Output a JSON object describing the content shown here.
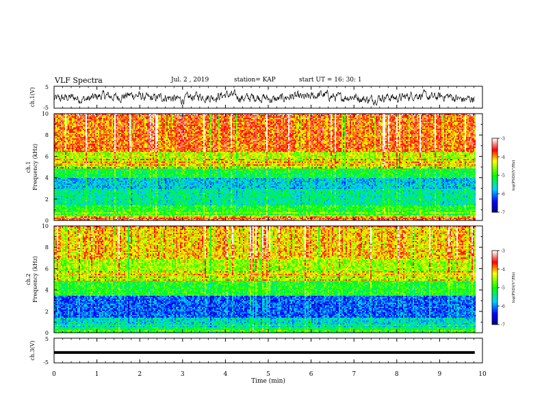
{
  "header": {
    "title": "VLF Spectra",
    "date": "Jul. 2 , 2019",
    "station": "station= KAP",
    "start": "start UT = 16: 30: 1"
  },
  "chart_data": [
    {
      "type": "line",
      "name": "ch1-waveform",
      "ylabel": "ch.1(V)",
      "ylim": [
        -5,
        5
      ],
      "xlim": [
        0,
        10
      ],
      "yticks": [
        "5",
        "-5"
      ],
      "description_values": "noisy waveform oscillating roughly between -3 V and +3 V over 0 to 9.8 min"
    },
    {
      "type": "heatmap",
      "name": "ch1-spectrogram",
      "ylabel": "ch.1\nFrequency (kHz)",
      "ylabel_line1": "ch.1",
      "ylabel_line2": "Frequency (kHz)",
      "ylim": [
        0,
        10
      ],
      "yticks": [
        "0",
        "2",
        "4",
        "6",
        "8",
        "10"
      ],
      "xlim": [
        0,
        9.8
      ],
      "colorbar": {
        "label": "log(PSD)(V²/Hz)",
        "ticks": [
          "-3",
          "-4",
          "-5",
          "-6",
          "-7"
        ],
        "range": [
          -7,
          -3
        ]
      },
      "bands": [
        {
          "f0": 0,
          "f1": 0.5,
          "level": -4.0
        },
        {
          "f0": 0.5,
          "f1": 1.5,
          "level": -5.0
        },
        {
          "f0": 1.5,
          "f1": 3.0,
          "level": -5.4
        },
        {
          "f0": 3.0,
          "f1": 4.0,
          "level": -5.7
        },
        {
          "f0": 4.0,
          "f1": 5.0,
          "level": -5.1
        },
        {
          "f0": 5.0,
          "f1": 6.5,
          "level": -4.4
        },
        {
          "f0": 6.5,
          "f1": 10,
          "level": -3.8
        }
      ]
    },
    {
      "type": "heatmap",
      "name": "ch2-spectrogram",
      "ylabel_line1": "ch.2",
      "ylabel_line2": "Frequency (kHz)",
      "ylim": [
        0,
        10
      ],
      "yticks": [
        "0",
        "2",
        "4",
        "6",
        "8",
        "10"
      ],
      "xlim": [
        0,
        9.8
      ],
      "colorbar": {
        "label": "log(PSD)(V²/Hz)",
        "ticks": [
          "-3",
          "-4",
          "-5",
          "-6",
          "-7"
        ],
        "range": [
          -7,
          -3
        ]
      },
      "bands": [
        {
          "f0": 0,
          "f1": 0.5,
          "level": -5.2
        },
        {
          "f0": 0.5,
          "f1": 1.5,
          "level": -5.6
        },
        {
          "f0": 1.5,
          "f1": 3.5,
          "level": -6.1
        },
        {
          "f0": 3.5,
          "f1": 5.0,
          "level": -5.0
        },
        {
          "f0": 5.0,
          "f1": 7.0,
          "level": -4.5
        },
        {
          "f0": 7.0,
          "f1": 10,
          "level": -4.1
        }
      ]
    },
    {
      "type": "line",
      "name": "ch3-waveform",
      "ylabel": "ch.3(V)",
      "ylim": [
        -5,
        5
      ],
      "xlim": [
        0,
        10
      ],
      "yticks": [
        "5",
        "-5"
      ],
      "constant_value": 0
    }
  ],
  "xaxis": {
    "label": "Time (min)",
    "ticks": [
      "0",
      "1",
      "2",
      "3",
      "4",
      "5",
      "6",
      "7",
      "8",
      "9",
      "10"
    ],
    "range": [
      0,
      10
    ]
  },
  "colors": {
    "scale": [
      "#000080",
      "#0000ff",
      "#00c8ff",
      "#00ff00",
      "#ffff00",
      "#ff0000",
      "#ffffff"
    ]
  }
}
